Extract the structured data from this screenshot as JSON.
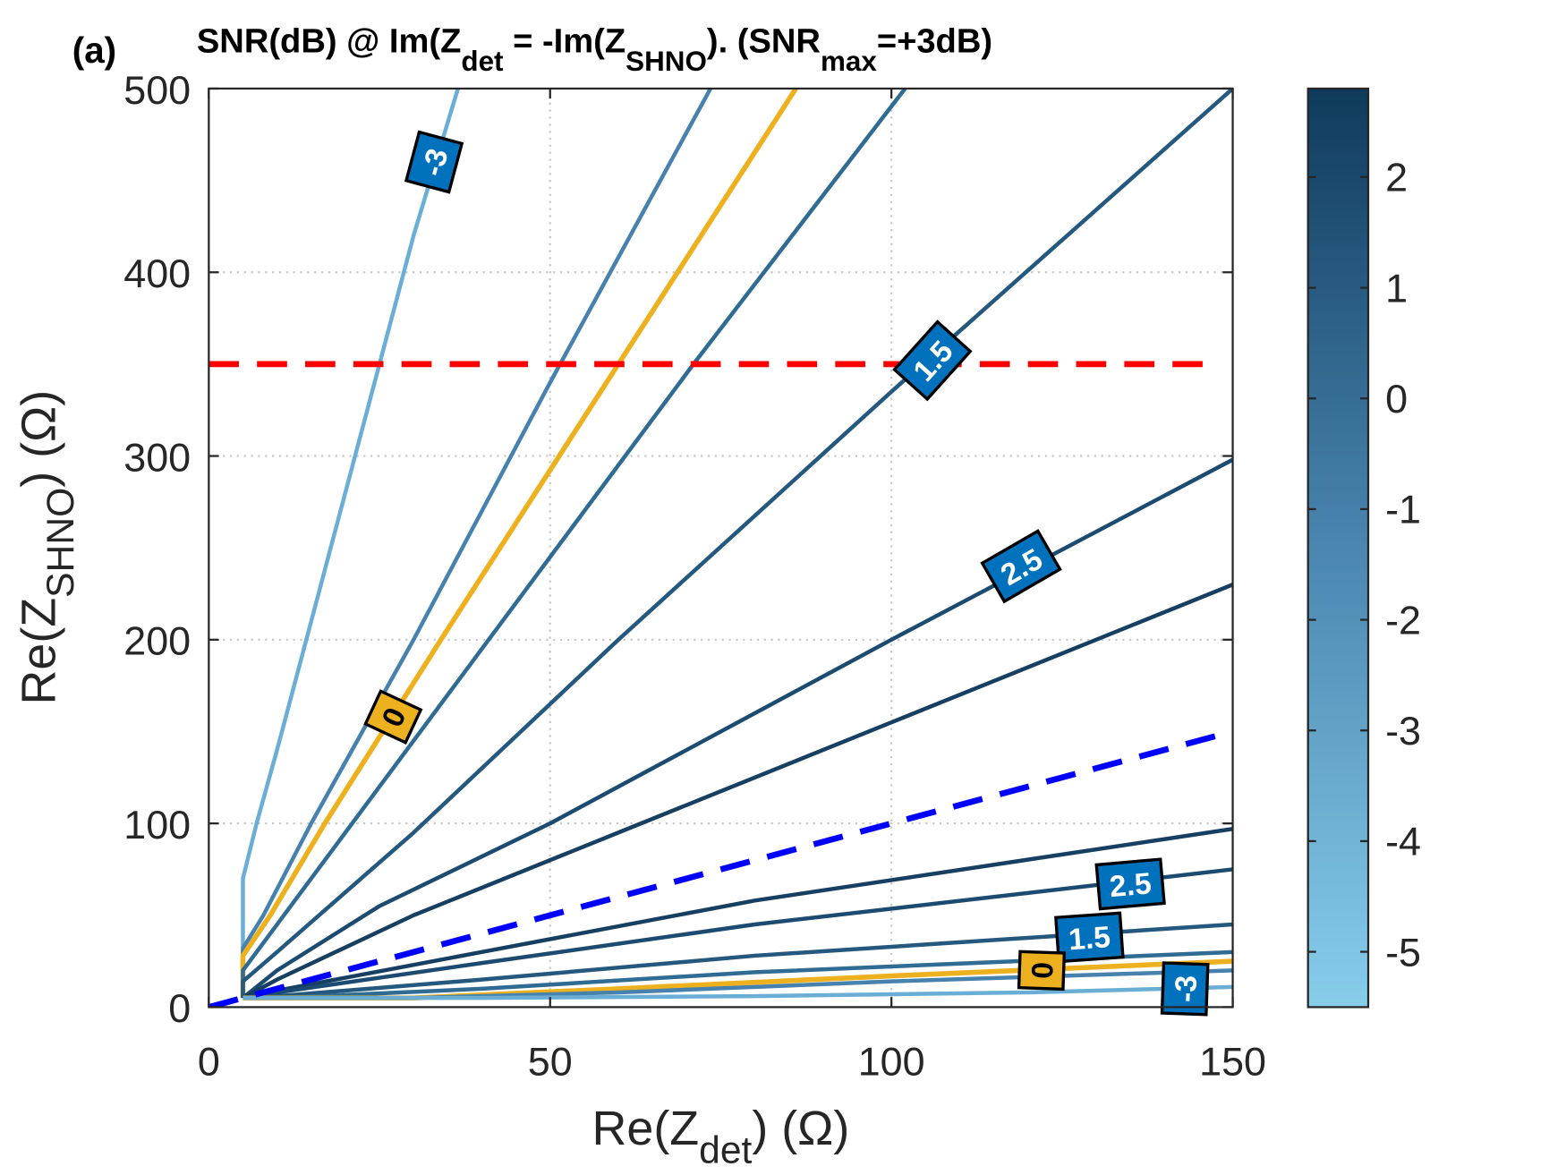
{
  "chart_data": {
    "type": "contour",
    "panel_label": "(a)",
    "title_parts": [
      {
        "t": "SNR(dB) @ Im(Z",
        "sub": false
      },
      {
        "t": "det",
        "sub": true
      },
      {
        "t": " = -Im(Z",
        "sub": false
      },
      {
        "t": "SHNO",
        "sub": true
      },
      {
        "t": "). (SNR",
        "sub": false
      },
      {
        "t": "max",
        "sub": true
      },
      {
        "t": "=+3dB)",
        "sub": false
      }
    ],
    "xlabel": {
      "main": "Re(Z",
      "sub": "det",
      "tail": ") (Ω)"
    },
    "ylabel": {
      "main": "Re(Z",
      "sub": "SHNO",
      "tail": ") (Ω)"
    },
    "xlim": [
      0,
      150
    ],
    "ylim": [
      0,
      500
    ],
    "xticks": [
      0,
      50,
      100,
      150
    ],
    "yticks": [
      0,
      100,
      200,
      300,
      400,
      500
    ],
    "grid": "dotted",
    "colorbar": {
      "range": [
        -5.5,
        2.8
      ],
      "ticks": [
        -5,
        -4,
        -3,
        -2,
        -1,
        0,
        1,
        2
      ],
      "color_low": "#87ceeb",
      "color_high": "#0f3a5c"
    },
    "contours": [
      {
        "level": -3,
        "color": "#6aaed6",
        "points": [
          [
            5,
            5
          ],
          [
            5,
            70
          ],
          [
            7,
            100
          ],
          [
            10,
            140
          ],
          [
            15,
            210
          ],
          [
            20,
            280
          ],
          [
            25,
            350
          ],
          [
            30,
            420
          ],
          [
            36.5,
            500
          ]
        ]
      },
      {
        "level": -1,
        "color": "#4682ad",
        "points": [
          [
            5,
            5
          ],
          [
            5,
            32
          ],
          [
            8,
            50
          ],
          [
            15,
            100
          ],
          [
            30,
            200
          ],
          [
            50,
            340
          ],
          [
            73.5,
            500
          ]
        ]
      },
      {
        "level": 0,
        "color": "#edb120",
        "points": [
          [
            5,
            5
          ],
          [
            5,
            28
          ],
          [
            9,
            50
          ],
          [
            17,
            100
          ],
          [
            34,
            200
          ],
          [
            60,
            350
          ],
          [
            86,
            500
          ]
        ]
      },
      {
        "level": 1,
        "color": "#2f6b93",
        "points": [
          [
            5,
            5
          ],
          [
            5,
            20
          ],
          [
            10,
            45
          ],
          [
            20,
            95
          ],
          [
            41,
            200
          ],
          [
            71,
            350
          ],
          [
            102,
            500
          ]
        ]
      },
      {
        "level": 1.5,
        "color": "#24587e",
        "points": [
          [
            5,
            5
          ],
          [
            5,
            14
          ],
          [
            10,
            30
          ],
          [
            30,
            95
          ],
          [
            60,
            200
          ],
          [
            100,
            335
          ],
          [
            150,
            500
          ]
        ]
      },
      {
        "level": 2.5,
        "color": "#1b4b70",
        "points": [
          [
            5,
            5
          ],
          [
            10,
            20
          ],
          [
            25,
            55
          ],
          [
            50,
            100
          ],
          [
            100,
            200
          ],
          [
            150,
            298
          ]
        ]
      },
      {
        "level": 2.8,
        "color": "#163f62",
        "points": [
          [
            5,
            5
          ],
          [
            10,
            15
          ],
          [
            30,
            50
          ],
          [
            60,
            95
          ],
          [
            100,
            155
          ],
          [
            150,
            230
          ]
        ]
      },
      {
        "level": 2.8,
        "color": "#163f62",
        "points": [
          [
            5,
            5
          ],
          [
            10,
            9
          ],
          [
            40,
            30
          ],
          [
            80,
            58
          ],
          [
            150,
            97
          ]
        ]
      },
      {
        "level": 2.5,
        "color": "#1b4b70",
        "points": [
          [
            5,
            5
          ],
          [
            10,
            8
          ],
          [
            40,
            24
          ],
          [
            80,
            45
          ],
          [
            150,
            75
          ]
        ]
      },
      {
        "level": 1.5,
        "color": "#24587e",
        "points": [
          [
            5,
            5
          ],
          [
            10,
            6
          ],
          [
            40,
            15
          ],
          [
            80,
            28
          ],
          [
            150,
            45
          ]
        ]
      },
      {
        "level": 1,
        "color": "#2f6b93",
        "points": [
          [
            5,
            5
          ],
          [
            10,
            5
          ],
          [
            40,
            10
          ],
          [
            80,
            19
          ],
          [
            150,
            30
          ]
        ]
      },
      {
        "level": 0,
        "color": "#edb120",
        "points": [
          [
            5,
            5
          ],
          [
            30,
            5
          ],
          [
            60,
            10
          ],
          [
            100,
            17
          ],
          [
            150,
            25
          ]
        ]
      },
      {
        "level": -1,
        "color": "#4682ad",
        "points": [
          [
            5,
            5
          ],
          [
            30,
            5
          ],
          [
            60,
            8
          ],
          [
            100,
            14
          ],
          [
            150,
            20
          ]
        ]
      },
      {
        "level": -3,
        "color": "#6aaed6",
        "points": [
          [
            5,
            5
          ],
          [
            40,
            5
          ],
          [
            80,
            6
          ],
          [
            120,
            8
          ],
          [
            150,
            11
          ]
        ]
      }
    ],
    "contour_labels": [
      {
        "text": "-3",
        "x": 33,
        "y": 460,
        "angle": -75,
        "bg": "#0072bd",
        "fg": "#fff"
      },
      {
        "text": "0",
        "x": 27,
        "y": 158,
        "angle": -65,
        "bg": "#edb120",
        "fg": "#000"
      },
      {
        "text": "1.5",
        "x": 106,
        "y": 352,
        "angle": -48,
        "bg": "#0072bd",
        "fg": "#fff"
      },
      {
        "text": "2.5",
        "x": 119,
        "y": 240,
        "angle": -30,
        "bg": "#0072bd",
        "fg": "#fff"
      },
      {
        "text": "2.5",
        "x": 135,
        "y": 67,
        "angle": -5,
        "bg": "#0072bd",
        "fg": "#fff"
      },
      {
        "text": "1.5",
        "x": 129,
        "y": 38,
        "angle": -4,
        "bg": "#0072bd",
        "fg": "#fff"
      },
      {
        "text": "0",
        "x": 122,
        "y": 20,
        "angle": -88,
        "bg": "#edb120",
        "fg": "#000"
      },
      {
        "text": "-3",
        "x": 143,
        "y": 10,
        "angle": -88,
        "bg": "#0072bd",
        "fg": "#fff"
      }
    ],
    "reference_lines": [
      {
        "style": "dashed",
        "color": "#ff0000",
        "points": [
          [
            0,
            350
          ],
          [
            146,
            350
          ]
        ]
      },
      {
        "style": "dashed",
        "color": "#0000ff",
        "points": [
          [
            0,
            0
          ],
          [
            150,
            150
          ]
        ]
      }
    ]
  }
}
